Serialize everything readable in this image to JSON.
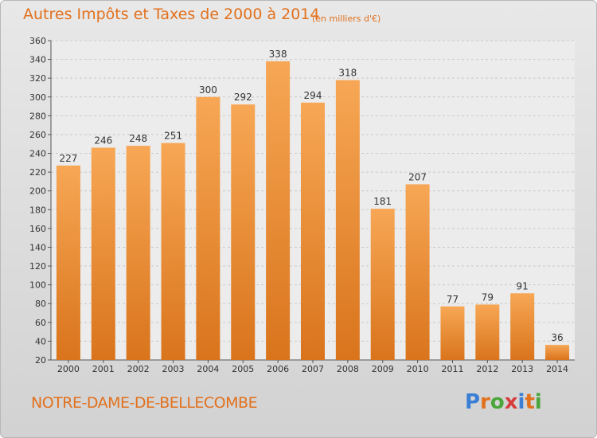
{
  "header": {
    "title": "Autres Impôts et Taxes de 2000 à 2014",
    "subtitle": "(en milliers d'€)"
  },
  "footer": {
    "commune": "NOTRE-DAME-DE-BELLECOMBE",
    "logo": "Proxiti"
  },
  "colors": {
    "accent": "#e2711d",
    "bar_light": "#f7a755",
    "bar_dark": "#d9741c"
  },
  "chart_data": {
    "type": "bar",
    "title": "Autres Impôts et Taxes de 2000 à 2014",
    "subtitle": "(en milliers d'€)",
    "categories": [
      "2000",
      "2001",
      "2002",
      "2003",
      "2004",
      "2005",
      "2006",
      "2007",
      "2008",
      "2009",
      "2010",
      "2011",
      "2012",
      "2013",
      "2014"
    ],
    "values": [
      227,
      246,
      248,
      251,
      300,
      292,
      338,
      294,
      318,
      181,
      207,
      77,
      79,
      91,
      36
    ],
    "ylim": [
      20,
      360
    ],
    "yticks": [
      20,
      40,
      60,
      80,
      100,
      120,
      140,
      160,
      180,
      200,
      220,
      240,
      260,
      280,
      300,
      320,
      340,
      360
    ],
    "grid": "horizontal dashed",
    "data_labels": true
  }
}
